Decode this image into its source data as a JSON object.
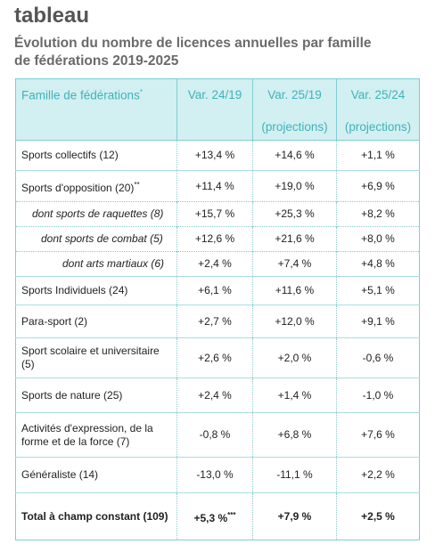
{
  "header": {
    "title": "tableau",
    "subtitle_lines": [
      "Évolution du nombre de licences annuelles par famille",
      "de fédérations 2019-2025"
    ]
  },
  "table": {
    "columns": [
      {
        "text": "Famille de fédérations",
        "note": "*"
      },
      {
        "text": "Var. 24/19"
      },
      {
        "text": "Var. 25/19",
        "sub": "(projections)"
      },
      {
        "text": "Var. 25/24",
        "sub": "(projections)"
      }
    ],
    "rows": [
      {
        "label": "Sports collectifs (12)",
        "cells": [
          "+13,4 %",
          "+14,6 %",
          "+1,1 %"
        ]
      },
      {
        "label": "Sports d'opposition (20)",
        "note": "**",
        "cells": [
          "+11,4 %",
          "+19,0 %",
          "+6,9 %"
        ]
      },
      {
        "label": "dont sports de raquettes (8)",
        "cells": [
          "+15,7 %",
          "+25,3 %",
          "+8,2 %"
        ]
      },
      {
        "label": "dont sports de combat (5)",
        "cells": [
          "+12,6 %",
          "+21,6 %",
          "+8,0 %"
        ]
      },
      {
        "label": "dont arts martiaux (6)",
        "cells": [
          "+2,4 %",
          "+7,4 %",
          "+4,8 %"
        ]
      },
      {
        "label": "Sports Individuels (24)",
        "cells": [
          "+6,1 %",
          "+11,6 %",
          "+5,1 %"
        ]
      },
      {
        "label": "Para-sport (2)",
        "cells": [
          "+2,7 %",
          "+12,0 %",
          "+9,1 %"
        ]
      },
      {
        "label": "Sport scolaire et universitaire (5)",
        "cells": [
          "+2,6 %",
          "+2,0 %",
          "-0,6 %"
        ]
      },
      {
        "label": "Sports de nature (25)",
        "cells": [
          "+2,4 %",
          "+1,4 %",
          "-1,0 %"
        ]
      },
      {
        "label": "Activités d'expression, de la forme et de la force (7)",
        "cells": [
          "-0,8 %",
          "+6,8 %",
          "+7,6 %"
        ]
      },
      {
        "label": "Généraliste (14)",
        "cells": [
          "-13,0 %",
          "-11,1 %",
          "+2,2 %"
        ]
      },
      {
        "label": "Total à champ constant (109)",
        "cells": [
          "+5,3 %",
          "+7,9 %",
          "+2,5 %"
        ],
        "cell_note": "***"
      }
    ]
  }
}
